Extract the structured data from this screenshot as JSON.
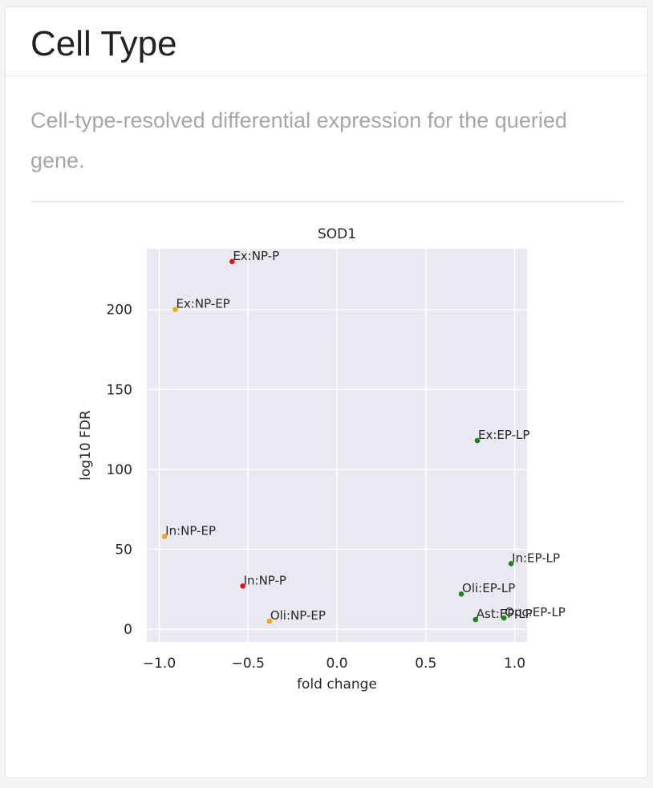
{
  "card": {
    "title": "Cell Type",
    "description": "Cell-type-resolved differential expression for the queried gene."
  },
  "chart_data": {
    "type": "scatter",
    "title": "SOD1",
    "xlabel": "fold change",
    "ylabel": "log10 FDR",
    "xlim": [
      -1.07,
      1.07
    ],
    "ylim": [
      -8,
      238
    ],
    "xticks": [
      -1.0,
      -0.5,
      0.0,
      0.5,
      1.0
    ],
    "xtick_labels": [
      "−1.0",
      "−0.5",
      "0.0",
      "0.5",
      "1.0"
    ],
    "yticks": [
      0,
      50,
      100,
      150,
      200
    ],
    "ytick_labels": [
      "0",
      "50",
      "100",
      "150",
      "200"
    ],
    "grid": true,
    "legend": "none",
    "colors": {
      "NP-P": "#e8101a",
      "NP-EP": "#f8a51c",
      "EP-LP": "#148a14",
      "plot_background": "#e9e9f1",
      "grid": "#ffffff"
    },
    "points": [
      {
        "label": "Ex:NP-P",
        "x": -0.59,
        "y": 230,
        "group": "NP-P"
      },
      {
        "label": "Ex:NP-EP",
        "x": -0.91,
        "y": 200,
        "group": "NP-EP"
      },
      {
        "label": "Ex:EP-LP",
        "x": 0.79,
        "y": 118,
        "group": "EP-LP"
      },
      {
        "label": "In:NP-EP",
        "x": -0.97,
        "y": 58,
        "group": "NP-EP"
      },
      {
        "label": "In:EP-LP",
        "x": 0.98,
        "y": 41,
        "group": "EP-LP"
      },
      {
        "label": "In:NP-P",
        "x": -0.53,
        "y": 27,
        "group": "NP-P"
      },
      {
        "label": "Oli:EP-LP",
        "x": 0.7,
        "y": 22,
        "group": "EP-LP"
      },
      {
        "label": "Oli:NP-EP",
        "x": -0.38,
        "y": 5,
        "group": "NP-EP"
      },
      {
        "label": "Ast:EP-LP",
        "x": 0.78,
        "y": 6,
        "group": "EP-LP"
      },
      {
        "label": "Opc:EP-LP",
        "x": 0.94,
        "y": 7,
        "group": "EP-LP"
      }
    ]
  }
}
